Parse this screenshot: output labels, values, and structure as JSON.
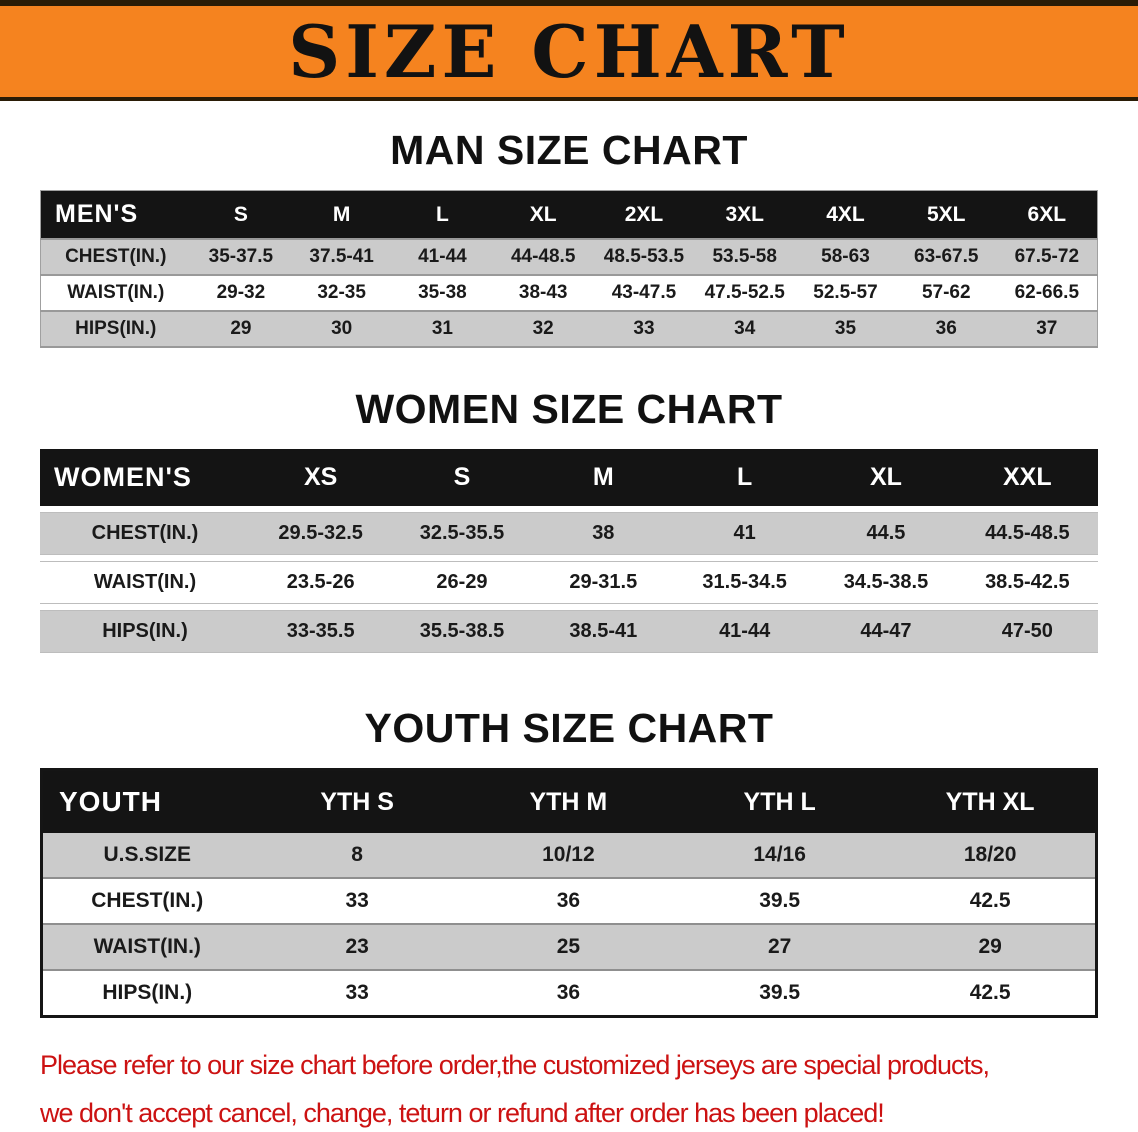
{
  "banner": {
    "title": "SIZE CHART"
  },
  "sections": {
    "men": {
      "heading": "MAN SIZE CHART",
      "table": {
        "title": "MEN'S",
        "columns": [
          "S",
          "M",
          "L",
          "XL",
          "2XL",
          "3XL",
          "4XL",
          "5XL",
          "6XL"
        ],
        "rows": [
          {
            "label": "CHEST(IN.)",
            "values": [
              "35-37.5",
              "37.5-41",
              "41-44",
              "44-48.5",
              "48.5-53.5",
              "53.5-58",
              "58-63",
              "63-67.5",
              "67.5-72"
            ]
          },
          {
            "label": "WAIST(IN.)",
            "values": [
              "29-32",
              "32-35",
              "35-38",
              "38-43",
              "43-47.5",
              "47.5-52.5",
              "52.5-57",
              "57-62",
              "62-66.5"
            ]
          },
          {
            "label": "HIPS(IN.)",
            "values": [
              "29",
              "30",
              "31",
              "32",
              "33",
              "34",
              "35",
              "36",
              "37"
            ]
          }
        ]
      }
    },
    "women": {
      "heading": "WOMEN SIZE CHART",
      "table": {
        "title": "WOMEN'S",
        "columns": [
          "XS",
          "S",
          "M",
          "L",
          "XL",
          "XXL"
        ],
        "rows": [
          {
            "label": "CHEST(IN.)",
            "values": [
              "29.5-32.5",
              "32.5-35.5",
              "38",
              "41",
              "44.5",
              "44.5-48.5"
            ]
          },
          {
            "label": "WAIST(IN.)",
            "values": [
              "23.5-26",
              "26-29",
              "29-31.5",
              "31.5-34.5",
              "34.5-38.5",
              "38.5-42.5"
            ]
          },
          {
            "label": "HIPS(IN.)",
            "values": [
              "33-35.5",
              "35.5-38.5",
              "38.5-41",
              "41-44",
              "44-47",
              "47-50"
            ]
          }
        ]
      }
    },
    "youth": {
      "heading": "YOUTH SIZE CHART",
      "table": {
        "title": "YOUTH",
        "columns": [
          "YTH S",
          "YTH M",
          "YTH L",
          "YTH XL"
        ],
        "rows": [
          {
            "label": "U.S.SIZE",
            "values": [
              "8",
              "10/12",
              "14/16",
              "18/20"
            ]
          },
          {
            "label": "CHEST(IN.)",
            "values": [
              "33",
              "36",
              "39.5",
              "42.5"
            ]
          },
          {
            "label": "WAIST(IN.)",
            "values": [
              "23",
              "25",
              "27",
              "29"
            ]
          },
          {
            "label": "HIPS(IN.)",
            "values": [
              "33",
              "36",
              "39.5",
              "42.5"
            ]
          }
        ]
      }
    }
  },
  "disclaimer": {
    "line1": "Please refer to our size chart before order,the customized jerseys are special products,",
    "line2": "we don't accept cancel, change, teturn or refund after order has been placed!"
  },
  "colors": {
    "banner_bg": "#f5831f",
    "banner_edge": "#2a1c06",
    "table_header_bg": "#141414",
    "row_alt_bg": "#cbcbcb",
    "disclaimer_color": "#cc1212"
  }
}
